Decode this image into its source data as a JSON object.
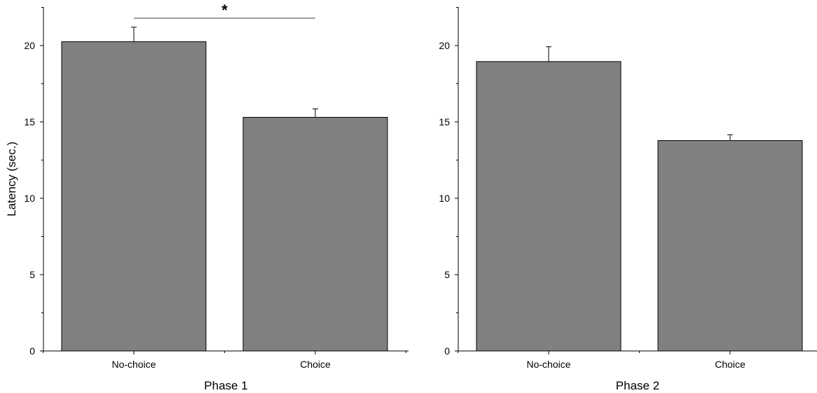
{
  "chart_data": [
    {
      "type": "bar",
      "xlabel": "Phase 1",
      "ylabel": "Latency (sec.)",
      "categories": [
        "No-choice",
        "Choice"
      ],
      "values": [
        20.25,
        15.3
      ],
      "errors": [
        0.95,
        0.55
      ],
      "ylim": [
        0,
        22.5
      ],
      "yticks": [
        0,
        5,
        10,
        15,
        20
      ],
      "yticks_labels": [
        "0",
        "5",
        "10",
        "15",
        "20"
      ],
      "grid": false,
      "bar_color": "#808080",
      "significance": {
        "between": [
          "No-choice",
          "Choice"
        ],
        "label": "*"
      }
    },
    {
      "type": "bar",
      "xlabel": "Phase 2",
      "ylabel": "",
      "categories": [
        "No-choice",
        "Choice"
      ],
      "values": [
        18.95,
        13.78
      ],
      "errors": [
        0.97,
        0.38
      ],
      "ylim": [
        0,
        22.5
      ],
      "yticks": [
        0,
        5,
        10,
        15,
        20
      ],
      "yticks_labels": [
        "0",
        "5",
        "10",
        "15",
        "20"
      ],
      "grid": false,
      "bar_color": "#808080"
    }
  ]
}
